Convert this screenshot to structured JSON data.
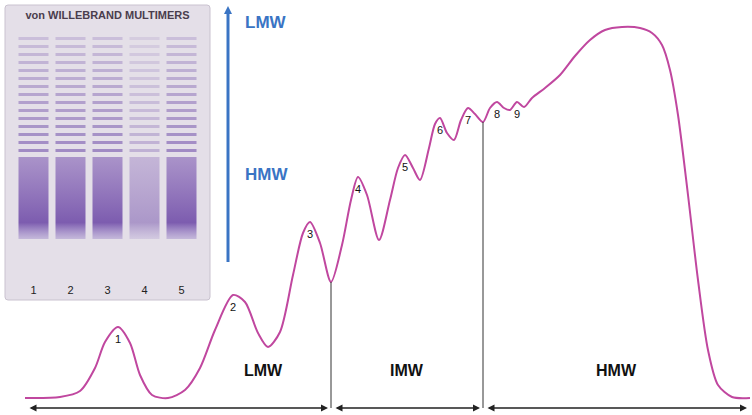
{
  "chart_data": {
    "type": "line",
    "color": "#c0479f",
    "x": [
      25,
      60,
      80,
      95,
      105,
      118,
      130,
      140,
      152,
      168,
      185,
      200,
      215,
      233,
      245,
      258,
      268,
      280,
      293,
      303,
      310,
      320,
      331,
      342,
      351,
      358,
      367,
      379,
      390,
      398,
      405,
      413,
      420,
      429,
      435,
      440,
      447,
      454,
      461,
      468,
      475,
      483,
      490,
      497,
      504,
      510,
      517,
      524,
      532,
      545,
      560,
      575,
      590,
      605,
      622,
      640,
      652,
      662,
      670,
      678,
      688,
      698,
      708,
      718,
      732,
      750
    ],
    "values": [
      17,
      18,
      24,
      47,
      73,
      88,
      72,
      40,
      20,
      17,
      25,
      47,
      85,
      120,
      113,
      82,
      68,
      83,
      140,
      182,
      193,
      172,
      133,
      170,
      215,
      238,
      220,
      175,
      215,
      247,
      260,
      247,
      235,
      267,
      291,
      297,
      282,
      275,
      295,
      307,
      301,
      293,
      307,
      313,
      307,
      305,
      313,
      308,
      317,
      327,
      340,
      359,
      375,
      385,
      388,
      387,
      382,
      370,
      345,
      300,
      220,
      135,
      65,
      30,
      18,
      17
    ],
    "xlim": [
      0,
      752
    ],
    "ylim": [
      0,
      415
    ],
    "tick_labels": false,
    "grid": false,
    "peaks": [
      {
        "label": "1",
        "x": 118,
        "y": 88
      },
      {
        "label": "2",
        "x": 233,
        "y": 120
      },
      {
        "label": "3",
        "x": 310,
        "y": 193
      },
      {
        "label": "4",
        "x": 358,
        "y": 238
      },
      {
        "label": "5",
        "x": 405,
        "y": 260
      },
      {
        "label": "6",
        "x": 440,
        "y": 297
      },
      {
        "label": "7",
        "x": 468,
        "y": 307
      },
      {
        "label": "8",
        "x": 497,
        "y": 313
      },
      {
        "label": "9",
        "x": 517,
        "y": 313
      }
    ],
    "regions": [
      {
        "label": "LMW",
        "from": 25,
        "to": 331
      },
      {
        "label": "IMW",
        "from": 331,
        "to": 483
      },
      {
        "label": "HMW",
        "from": 483,
        "to": 750
      }
    ]
  },
  "inset": {
    "title": "von WILLEBRAND MULTIMERS",
    "lanes": [
      "1",
      "2",
      "3",
      "4",
      "5"
    ],
    "arrow_labels": [
      "LMW",
      "HMW"
    ]
  }
}
